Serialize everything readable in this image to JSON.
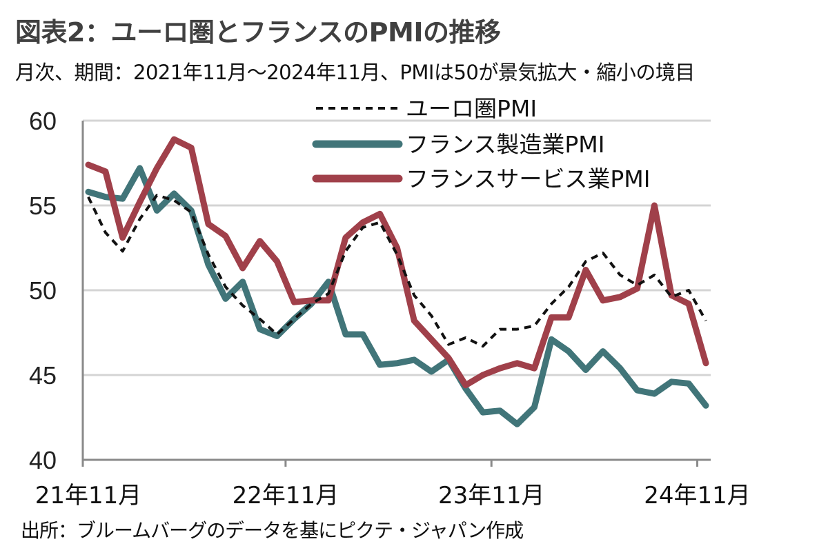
{
  "header": {
    "title": "図表2：ユーロ圏とフランスのPMIの推移",
    "subtitle": "月次、期間：2021年11月～2024年11月、PMIは50が景気拡大・縮小の境目"
  },
  "footer": {
    "source": "出所：ブルームバーグのデータを基にピクテ・ジャパン作成"
  },
  "chart_data": {
    "type": "line",
    "title": "図表2：ユーロ圏とフランスのPMIの推移",
    "subtitle": "月次、期間：2021年11月～2024年11月、PMIは50が景気拡大・縮小の境目",
    "xlabel": "",
    "ylabel": "",
    "ylim": [
      40,
      60
    ],
    "yticks": [
      "60",
      "55",
      "50",
      "45",
      "40"
    ],
    "ytick_values": [
      60,
      55,
      50,
      45,
      40
    ],
    "xtick_labels": [
      "21年11月",
      "22年11月",
      "23年11月",
      "24年11月"
    ],
    "xtick_boundaries": [
      0,
      12,
      24,
      36
    ],
    "n_points": 37,
    "grid": true,
    "legend_position": "top-right",
    "series": [
      {
        "name": "ユーロ圏PMI",
        "style": "dashed",
        "color": "#111111",
        "values": [
          55.5,
          53.4,
          52.3,
          54.2,
          55.6,
          55.3,
          54.6,
          52.1,
          50.2,
          49.1,
          48.3,
          47.4,
          48.3,
          49.2,
          49.8,
          52.3,
          53.7,
          54.0,
          52.1,
          49.7,
          48.5,
          46.8,
          47.2,
          46.7,
          47.7,
          47.7,
          47.9,
          49.2,
          50.2,
          51.7,
          52.2,
          50.9,
          50.3,
          50.9,
          49.6,
          50.0,
          48.2
        ]
      },
      {
        "name": "フランス製造業PMI",
        "style": "solid",
        "color": "#417579",
        "values": [
          55.8,
          55.5,
          55.4,
          57.2,
          54.7,
          55.7,
          54.7,
          51.5,
          49.5,
          50.5,
          47.7,
          47.3,
          48.3,
          49.2,
          50.5,
          47.4,
          47.4,
          45.6,
          45.7,
          45.9,
          45.2,
          45.9,
          44.2,
          42.8,
          42.9,
          42.1,
          43.1,
          47.1,
          46.4,
          45.3,
          46.4,
          45.4,
          44.1,
          43.9,
          44.6,
          44.5,
          43.2
        ]
      },
      {
        "name": "フランスサービス業PMI",
        "style": "solid",
        "color": "#A0404A",
        "values": [
          57.4,
          57.0,
          53.1,
          55.2,
          57.2,
          58.9,
          58.4,
          53.9,
          53.2,
          51.3,
          52.9,
          51.7,
          49.3,
          49.4,
          49.4,
          53.1,
          54.0,
          54.5,
          52.5,
          48.2,
          47.1,
          46.0,
          44.4,
          45.0,
          45.4,
          45.7,
          45.4,
          48.4,
          48.4,
          51.2,
          49.4,
          49.6,
          50.1,
          55.0,
          49.7,
          49.2,
          45.7
        ]
      }
    ],
    "colors": {
      "gridline": "#d4d4d4",
      "axis": "#8a8a8a"
    }
  }
}
